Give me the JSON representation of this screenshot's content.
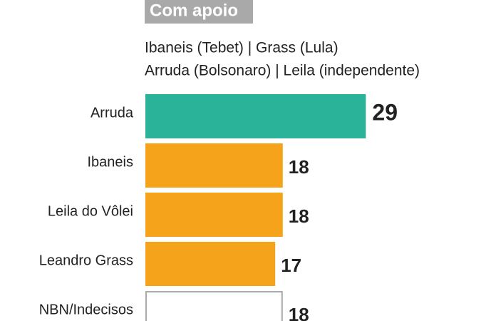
{
  "chart_data": {
    "type": "bar",
    "orientation": "horizontal",
    "title": "Com apoio",
    "subtitle": [
      "Ibaneis (Tebet) | Grass (Lula)",
      "Arruda (Bolsonaro) | Leila (independente)"
    ],
    "categories": [
      "Arruda",
      "Ibaneis",
      "Leila do Vôlei",
      "Leandro Grass",
      "NBN/Indecisos"
    ],
    "values": [
      29,
      18,
      18,
      17,
      18
    ],
    "colors": [
      "#2bb39a",
      "#f5a31a",
      "#f5a31a",
      "#f5a31a",
      "#ffffff"
    ],
    "edge_colors": [
      "#2bb39a",
      "#f5a31a",
      "#f5a31a",
      "#f5a31a",
      "#aaaaaa"
    ]
  }
}
